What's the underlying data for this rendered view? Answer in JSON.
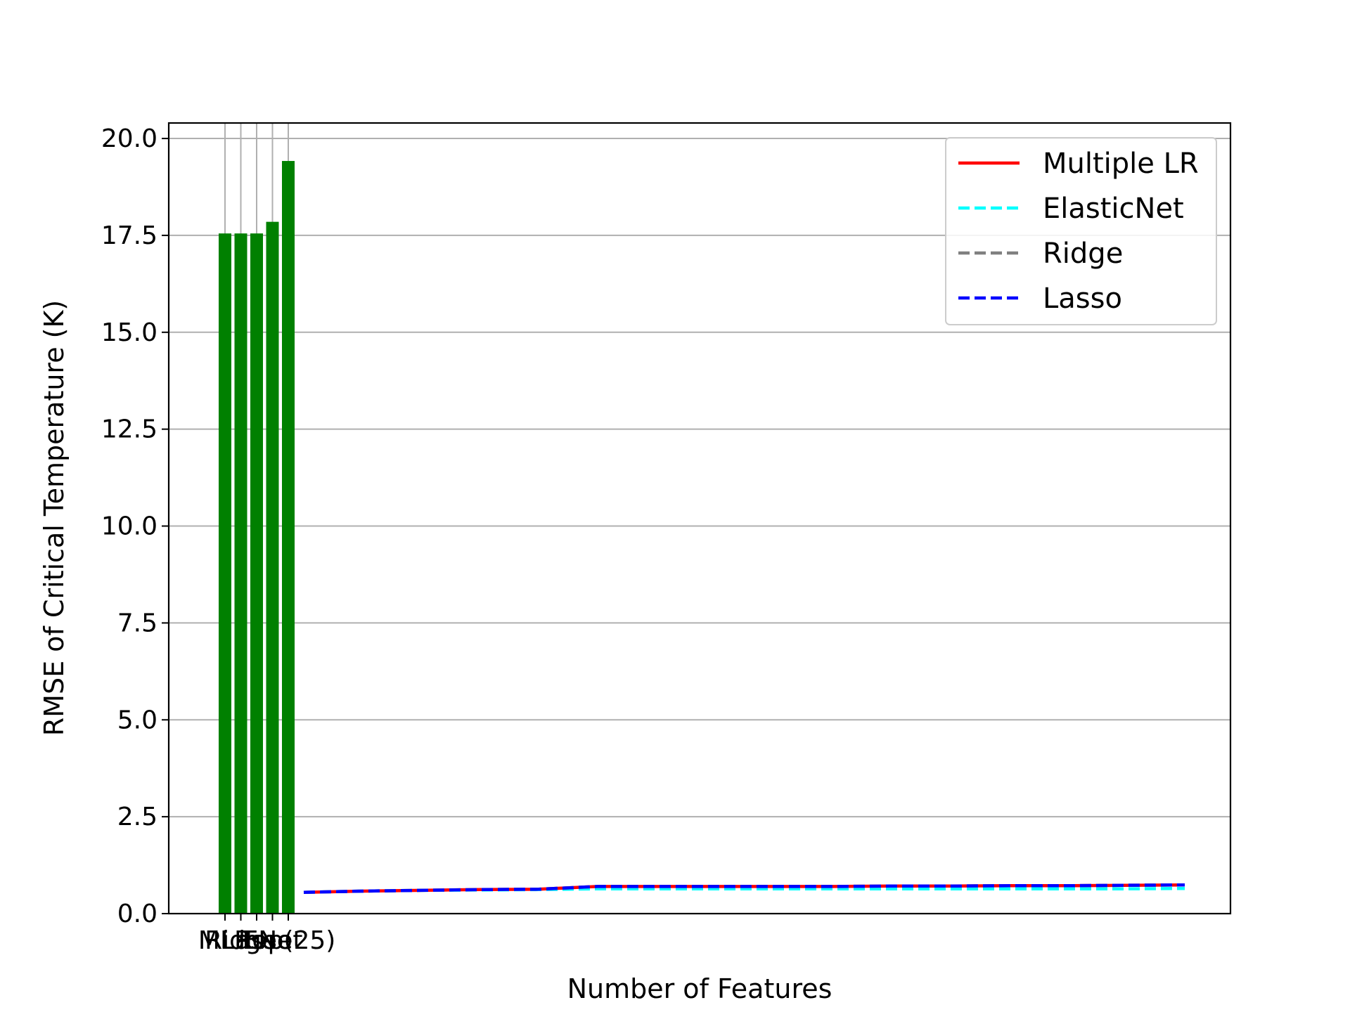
{
  "chart_data": {
    "type": "bar",
    "xlabel": "Number of Features",
    "ylabel": "RMSE of Critical Temperature (K)",
    "title": "",
    "ylim": [
      0,
      20.4
    ],
    "grid": true,
    "legend_position": "top-right",
    "yticks": [
      "0.0",
      "2.5",
      "5.0",
      "7.5",
      "10.0",
      "12.5",
      "15.0",
      "17.5",
      "20.0"
    ],
    "bars": {
      "color": "#008000",
      "categories": [
        "MLR",
        "Ridge",
        "Lasso",
        "ENet",
        "Top(25)"
      ],
      "values": [
        17.55,
        17.55,
        17.55,
        17.85,
        19.42
      ]
    },
    "series": [
      {
        "name": "Multiple LR",
        "color": "#ff0000",
        "style": "solid",
        "values": [
          0.55,
          0.58,
          0.6,
          0.62,
          0.63,
          0.7,
          0.7,
          0.7,
          0.7,
          0.7,
          0.71,
          0.71,
          0.72,
          0.72,
          0.73,
          0.74
        ]
      },
      {
        "name": "ElasticNet",
        "color": "#00ffff",
        "style": "dashed",
        "values": [
          0.55,
          0.58,
          0.6,
          0.61,
          0.62,
          0.64,
          0.64,
          0.64,
          0.64,
          0.64,
          0.64,
          0.64,
          0.64,
          0.64,
          0.64,
          0.65
        ]
      },
      {
        "name": "Ridge",
        "color": "#808080",
        "style": "dashed",
        "values": [
          0.55,
          0.58,
          0.6,
          0.62,
          0.63,
          0.7,
          0.7,
          0.7,
          0.7,
          0.7,
          0.71,
          0.71,
          0.72,
          0.72,
          0.73,
          0.74
        ]
      },
      {
        "name": "Lasso",
        "color": "#0000ff",
        "style": "dashed",
        "values": [
          0.55,
          0.58,
          0.6,
          0.62,
          0.63,
          0.7,
          0.7,
          0.7,
          0.7,
          0.7,
          0.71,
          0.71,
          0.72,
          0.72,
          0.73,
          0.74
        ]
      }
    ]
  }
}
